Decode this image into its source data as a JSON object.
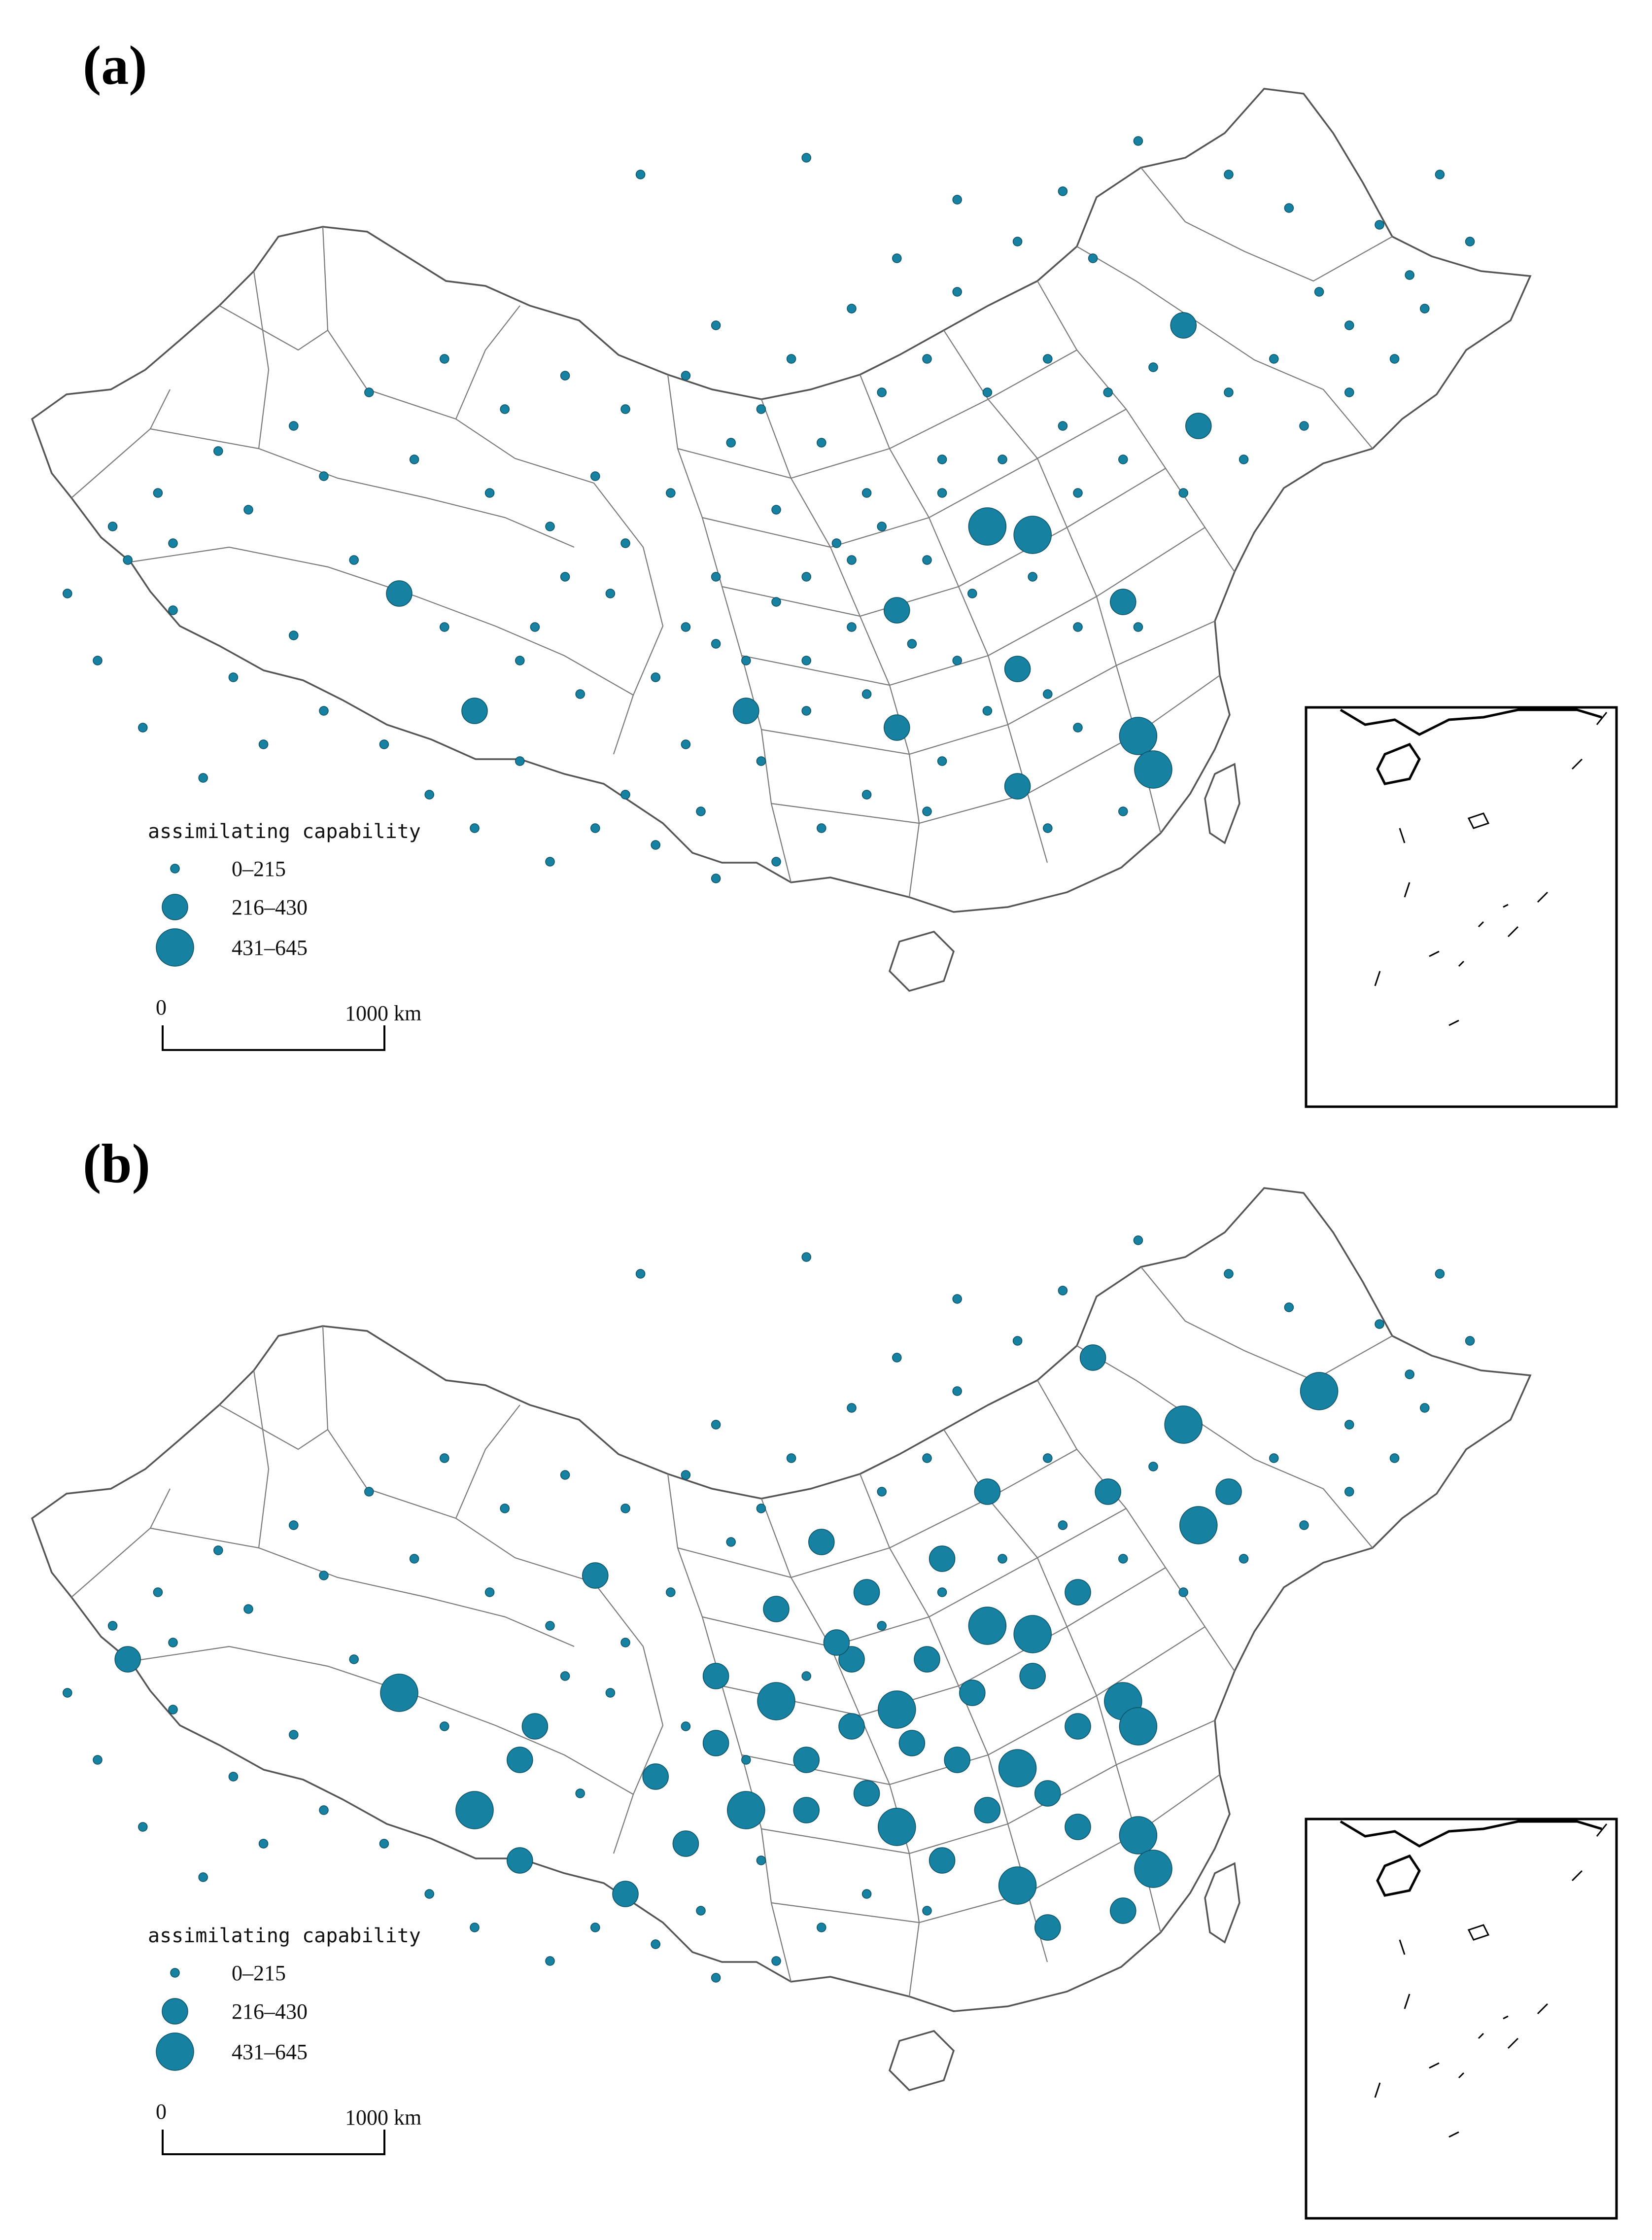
{
  "panels": [
    {
      "label": "(a)",
      "legend": {
        "title": "assimilating capability",
        "classes": [
          "0–215",
          "216–430",
          "431–645"
        ]
      },
      "scale": {
        "start": "0",
        "end": "1000 km"
      },
      "cities": [
        [
          0.41,
          0.12,
          1
        ],
        [
          0.52,
          0.1,
          1
        ],
        [
          0.62,
          0.15,
          1
        ],
        [
          0.71,
          0.22,
          1
        ],
        [
          0.77,
          0.3,
          2
        ],
        [
          0.78,
          0.42,
          2
        ],
        [
          0.86,
          0.26,
          1
        ],
        [
          0.46,
          0.3,
          1
        ],
        [
          0.38,
          0.48,
          1
        ],
        [
          0.55,
          0.58,
          1
        ],
        [
          0.64,
          0.54,
          3
        ],
        [
          0.67,
          0.55,
          3
        ],
        [
          0.58,
          0.64,
          2
        ],
        [
          0.66,
          0.71,
          2
        ],
        [
          0.54,
          0.56,
          1
        ],
        [
          0.5,
          0.63,
          1
        ],
        [
          0.46,
          0.68,
          1
        ],
        [
          0.61,
          0.46,
          1
        ],
        [
          0.7,
          0.5,
          1
        ],
        [
          0.73,
          0.63,
          2
        ],
        [
          0.74,
          0.66,
          1
        ],
        [
          0.7,
          0.78,
          1
        ],
        [
          0.74,
          0.79,
          3
        ],
        [
          0.75,
          0.83,
          3
        ],
        [
          0.73,
          0.88,
          1
        ],
        [
          0.68,
          0.9,
          1
        ],
        [
          0.66,
          0.85,
          2
        ],
        [
          0.61,
          0.82,
          1
        ],
        [
          0.58,
          0.78,
          2
        ],
        [
          0.56,
          0.74,
          1
        ],
        [
          0.52,
          0.7,
          1
        ],
        [
          0.48,
          0.76,
          2
        ],
        [
          0.44,
          0.8,
          1
        ],
        [
          0.4,
          0.86,
          1
        ],
        [
          0.33,
          0.82,
          1
        ],
        [
          0.3,
          0.76,
          2
        ],
        [
          0.33,
          0.7,
          1
        ],
        [
          0.28,
          0.66,
          1
        ],
        [
          0.25,
          0.62,
          2
        ],
        [
          0.22,
          0.58,
          1
        ],
        [
          0.18,
          0.67,
          1
        ],
        [
          0.14,
          0.72,
          1
        ],
        [
          0.1,
          0.64,
          1
        ],
        [
          0.07,
          0.58,
          1
        ],
        [
          0.09,
          0.5,
          1
        ],
        [
          0.13,
          0.45,
          1
        ],
        [
          0.18,
          0.42,
          1
        ],
        [
          0.23,
          0.38,
          1
        ],
        [
          0.28,
          0.34,
          1
        ],
        [
          0.32,
          0.4,
          1
        ],
        [
          0.36,
          0.36,
          1
        ],
        [
          0.4,
          0.4,
          1
        ],
        [
          0.44,
          0.36,
          1
        ],
        [
          0.49,
          0.4,
          1
        ],
        [
          0.53,
          0.44,
          1
        ],
        [
          0.57,
          0.38,
          1
        ],
        [
          0.6,
          0.34,
          1
        ],
        [
          0.64,
          0.38,
          1
        ],
        [
          0.68,
          0.34,
          1
        ],
        [
          0.72,
          0.38,
          1
        ],
        [
          0.75,
          0.35,
          1
        ],
        [
          0.8,
          0.38,
          1
        ],
        [
          0.83,
          0.34,
          1
        ],
        [
          0.88,
          0.3,
          1
        ],
        [
          0.92,
          0.24,
          1
        ],
        [
          0.9,
          0.18,
          1
        ],
        [
          0.94,
          0.12,
          1
        ],
        [
          0.96,
          0.2,
          1
        ],
        [
          0.84,
          0.16,
          1
        ],
        [
          0.8,
          0.12,
          1
        ],
        [
          0.74,
          0.08,
          1
        ],
        [
          0.69,
          0.14,
          1
        ],
        [
          0.66,
          0.2,
          1
        ],
        [
          0.62,
          0.26,
          1
        ],
        [
          0.58,
          0.22,
          1
        ],
        [
          0.55,
          0.28,
          1
        ],
        [
          0.51,
          0.34,
          1
        ],
        [
          0.47,
          0.44,
          1
        ],
        [
          0.43,
          0.5,
          1
        ],
        [
          0.4,
          0.56,
          1
        ],
        [
          0.36,
          0.6,
          1
        ],
        [
          0.34,
          0.66,
          1
        ],
        [
          0.37,
          0.74,
          1
        ],
        [
          0.42,
          0.72,
          1
        ],
        [
          0.46,
          0.6,
          1
        ],
        [
          0.5,
          0.52,
          1
        ],
        [
          0.56,
          0.5,
          1
        ],
        [
          0.6,
          0.58,
          1
        ],
        [
          0.63,
          0.62,
          1
        ],
        [
          0.67,
          0.6,
          1
        ],
        [
          0.7,
          0.66,
          1
        ],
        [
          0.68,
          0.74,
          1
        ],
        [
          0.64,
          0.76,
          1
        ],
        [
          0.62,
          0.7,
          1
        ],
        [
          0.59,
          0.68,
          1
        ],
        [
          0.55,
          0.66,
          1
        ],
        [
          0.52,
          0.76,
          1
        ],
        [
          0.49,
          0.82,
          1
        ],
        [
          0.45,
          0.88,
          1
        ],
        [
          0.42,
          0.92,
          1
        ],
        [
          0.38,
          0.9,
          1
        ],
        [
          0.35,
          0.94,
          1
        ],
        [
          0.3,
          0.9,
          1
        ],
        [
          0.27,
          0.86,
          1
        ],
        [
          0.24,
          0.8,
          1
        ],
        [
          0.2,
          0.76,
          1
        ],
        [
          0.16,
          0.8,
          1
        ],
        [
          0.12,
          0.84,
          1
        ],
        [
          0.08,
          0.78,
          1
        ],
        [
          0.05,
          0.7,
          1
        ],
        [
          0.03,
          0.62,
          1
        ],
        [
          0.06,
          0.54,
          1
        ],
        [
          0.1,
          0.56,
          1
        ],
        [
          0.15,
          0.52,
          1
        ],
        [
          0.2,
          0.48,
          1
        ],
        [
          0.26,
          0.46,
          1
        ],
        [
          0.31,
          0.5,
          1
        ],
        [
          0.35,
          0.54,
          1
        ],
        [
          0.39,
          0.62,
          1
        ],
        [
          0.44,
          0.66,
          1
        ],
        [
          0.48,
          0.7,
          1
        ],
        [
          0.52,
          0.6,
          1
        ],
        [
          0.57,
          0.54,
          1
        ],
        [
          0.61,
          0.5,
          1
        ],
        [
          0.65,
          0.46,
          1
        ],
        [
          0.69,
          0.42,
          1
        ],
        [
          0.73,
          0.46,
          1
        ],
        [
          0.77,
          0.5,
          1
        ],
        [
          0.81,
          0.46,
          1
        ],
        [
          0.85,
          0.42,
          1
        ],
        [
          0.88,
          0.38,
          1
        ],
        [
          0.91,
          0.34,
          1
        ],
        [
          0.93,
          0.28,
          1
        ],
        [
          0.6,
          0.88,
          1
        ],
        [
          0.56,
          0.86,
          1
        ],
        [
          0.53,
          0.9,
          1
        ],
        [
          0.5,
          0.94,
          1
        ],
        [
          0.46,
          0.96,
          1
        ]
      ]
    },
    {
      "label": "(b)",
      "legend": {
        "title": "assimilating capability",
        "classes": [
          "0–215",
          "216–430",
          "431–645"
        ]
      },
      "scale": {
        "start": "0",
        "end": "1000 km"
      },
      "cities": [
        [
          0.41,
          0.12,
          1
        ],
        [
          0.52,
          0.1,
          1
        ],
        [
          0.62,
          0.15,
          1
        ],
        [
          0.71,
          0.22,
          2
        ],
        [
          0.77,
          0.3,
          3
        ],
        [
          0.78,
          0.42,
          3
        ],
        [
          0.86,
          0.26,
          3
        ],
        [
          0.46,
          0.3,
          1
        ],
        [
          0.38,
          0.48,
          2
        ],
        [
          0.55,
          0.58,
          2
        ],
        [
          0.64,
          0.54,
          3
        ],
        [
          0.67,
          0.55,
          3
        ],
        [
          0.58,
          0.64,
          3
        ],
        [
          0.66,
          0.71,
          3
        ],
        [
          0.54,
          0.56,
          2
        ],
        [
          0.5,
          0.63,
          3
        ],
        [
          0.46,
          0.68,
          2
        ],
        [
          0.61,
          0.46,
          2
        ],
        [
          0.7,
          0.5,
          2
        ],
        [
          0.73,
          0.63,
          3
        ],
        [
          0.74,
          0.66,
          3
        ],
        [
          0.7,
          0.78,
          2
        ],
        [
          0.74,
          0.79,
          3
        ],
        [
          0.75,
          0.83,
          3
        ],
        [
          0.73,
          0.88,
          2
        ],
        [
          0.68,
          0.9,
          2
        ],
        [
          0.66,
          0.85,
          3
        ],
        [
          0.61,
          0.82,
          2
        ],
        [
          0.58,
          0.78,
          3
        ],
        [
          0.56,
          0.74,
          2
        ],
        [
          0.52,
          0.7,
          2
        ],
        [
          0.48,
          0.76,
          3
        ],
        [
          0.44,
          0.8,
          2
        ],
        [
          0.4,
          0.86,
          2
        ],
        [
          0.33,
          0.82,
          2
        ],
        [
          0.3,
          0.76,
          3
        ],
        [
          0.33,
          0.7,
          2
        ],
        [
          0.28,
          0.66,
          1
        ],
        [
          0.25,
          0.62,
          3
        ],
        [
          0.22,
          0.58,
          1
        ],
        [
          0.18,
          0.67,
          1
        ],
        [
          0.14,
          0.72,
          1
        ],
        [
          0.1,
          0.64,
          1
        ],
        [
          0.07,
          0.58,
          2
        ],
        [
          0.09,
          0.5,
          1
        ],
        [
          0.13,
          0.45,
          1
        ],
        [
          0.18,
          0.42,
          1
        ],
        [
          0.23,
          0.38,
          1
        ],
        [
          0.28,
          0.34,
          1
        ],
        [
          0.32,
          0.4,
          1
        ],
        [
          0.36,
          0.36,
          1
        ],
        [
          0.4,
          0.4,
          1
        ],
        [
          0.44,
          0.36,
          1
        ],
        [
          0.49,
          0.4,
          1
        ],
        [
          0.53,
          0.44,
          2
        ],
        [
          0.57,
          0.38,
          1
        ],
        [
          0.6,
          0.34,
          1
        ],
        [
          0.64,
          0.38,
          2
        ],
        [
          0.68,
          0.34,
          1
        ],
        [
          0.72,
          0.38,
          2
        ],
        [
          0.75,
          0.35,
          1
        ],
        [
          0.8,
          0.38,
          2
        ],
        [
          0.83,
          0.34,
          1
        ],
        [
          0.88,
          0.3,
          1
        ],
        [
          0.92,
          0.24,
          1
        ],
        [
          0.9,
          0.18,
          1
        ],
        [
          0.94,
          0.12,
          1
        ],
        [
          0.96,
          0.2,
          1
        ],
        [
          0.84,
          0.16,
          1
        ],
        [
          0.8,
          0.12,
          1
        ],
        [
          0.74,
          0.08,
          1
        ],
        [
          0.69,
          0.14,
          1
        ],
        [
          0.66,
          0.2,
          1
        ],
        [
          0.62,
          0.26,
          1
        ],
        [
          0.58,
          0.22,
          1
        ],
        [
          0.55,
          0.28,
          1
        ],
        [
          0.51,
          0.34,
          1
        ],
        [
          0.47,
          0.44,
          1
        ],
        [
          0.43,
          0.5,
          1
        ],
        [
          0.4,
          0.56,
          1
        ],
        [
          0.36,
          0.6,
          1
        ],
        [
          0.34,
          0.66,
          2
        ],
        [
          0.37,
          0.74,
          1
        ],
        [
          0.42,
          0.72,
          2
        ],
        [
          0.46,
          0.6,
          2
        ],
        [
          0.5,
          0.52,
          2
        ],
        [
          0.56,
          0.5,
          2
        ],
        [
          0.6,
          0.58,
          2
        ],
        [
          0.63,
          0.62,
          2
        ],
        [
          0.67,
          0.6,
          2
        ],
        [
          0.7,
          0.66,
          2
        ],
        [
          0.68,
          0.74,
          2
        ],
        [
          0.64,
          0.76,
          2
        ],
        [
          0.62,
          0.7,
          2
        ],
        [
          0.59,
          0.68,
          2
        ],
        [
          0.55,
          0.66,
          2
        ],
        [
          0.52,
          0.76,
          2
        ],
        [
          0.49,
          0.82,
          1
        ],
        [
          0.45,
          0.88,
          1
        ],
        [
          0.42,
          0.92,
          1
        ],
        [
          0.38,
          0.9,
          1
        ],
        [
          0.35,
          0.94,
          1
        ],
        [
          0.3,
          0.9,
          1
        ],
        [
          0.27,
          0.86,
          1
        ],
        [
          0.24,
          0.8,
          1
        ],
        [
          0.2,
          0.76,
          1
        ],
        [
          0.16,
          0.8,
          1
        ],
        [
          0.12,
          0.84,
          1
        ],
        [
          0.08,
          0.78,
          1
        ],
        [
          0.05,
          0.7,
          1
        ],
        [
          0.03,
          0.62,
          1
        ],
        [
          0.06,
          0.54,
          1
        ],
        [
          0.1,
          0.56,
          1
        ],
        [
          0.15,
          0.52,
          1
        ],
        [
          0.2,
          0.48,
          1
        ],
        [
          0.26,
          0.46,
          1
        ],
        [
          0.31,
          0.5,
          1
        ],
        [
          0.35,
          0.54,
          1
        ],
        [
          0.39,
          0.62,
          1
        ],
        [
          0.44,
          0.66,
          1
        ],
        [
          0.48,
          0.7,
          1
        ],
        [
          0.52,
          0.6,
          1
        ],
        [
          0.57,
          0.54,
          1
        ],
        [
          0.61,
          0.5,
          1
        ],
        [
          0.65,
          0.46,
          1
        ],
        [
          0.69,
          0.42,
          1
        ],
        [
          0.73,
          0.46,
          1
        ],
        [
          0.77,
          0.5,
          1
        ],
        [
          0.81,
          0.46,
          1
        ],
        [
          0.85,
          0.42,
          1
        ],
        [
          0.88,
          0.38,
          1
        ],
        [
          0.91,
          0.34,
          1
        ],
        [
          0.93,
          0.28,
          1
        ],
        [
          0.6,
          0.88,
          1
        ],
        [
          0.56,
          0.86,
          1
        ],
        [
          0.53,
          0.9,
          1
        ],
        [
          0.5,
          0.94,
          1
        ],
        [
          0.46,
          0.96,
          1
        ]
      ]
    }
  ],
  "colors": {
    "marker_fill": "#1681a0",
    "marker_stroke": "#0a4f63",
    "boundary": "#7a7a7a"
  }
}
